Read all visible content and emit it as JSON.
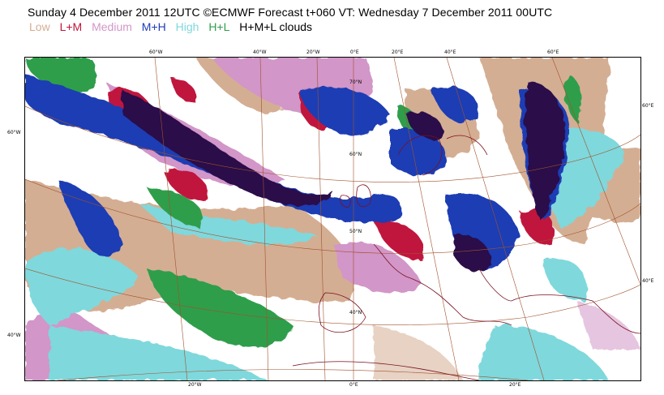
{
  "title": "Sunday 4 December 2011 12UTC ©ECMWF Forecast t+060 VT: Wednesday 7 December 2011 00UTC",
  "legend": [
    {
      "label": "Low",
      "color": "#d4ae93"
    },
    {
      "label": "L+M",
      "color": "#c0143c"
    },
    {
      "label": "Medium",
      "color": "#d296c8"
    },
    {
      "label": "M+H",
      "color": "#1e3cb4"
    },
    {
      "label": "High",
      "color": "#7fd8dc"
    },
    {
      "label": "H+L",
      "color": "#2e9e4c"
    },
    {
      "label": "H+M+L clouds",
      "color": "#000000"
    }
  ],
  "colors": {
    "low": "#d4ae93",
    "lm": "#c0143c",
    "medium": "#d296c8",
    "mh": "#1e3cb4",
    "high": "#7fd8dc",
    "hl": "#2e9e4c",
    "hml": "#2a0a4a",
    "grid": "#a0522d",
    "coast": "#7a1020"
  },
  "axis_labels": {
    "top": [
      "60°W",
      "40°W",
      "20°W",
      "0°E",
      "20°E",
      "40°E",
      "60°E"
    ],
    "bottom": [
      "20°W",
      "0°E",
      "20°E"
    ],
    "left": [
      "60°W",
      "40°W"
    ],
    "right": [
      "60°E",
      "40°E"
    ],
    "lat": [
      "70°N",
      "60°N",
      "50°N",
      "40°N"
    ]
  }
}
